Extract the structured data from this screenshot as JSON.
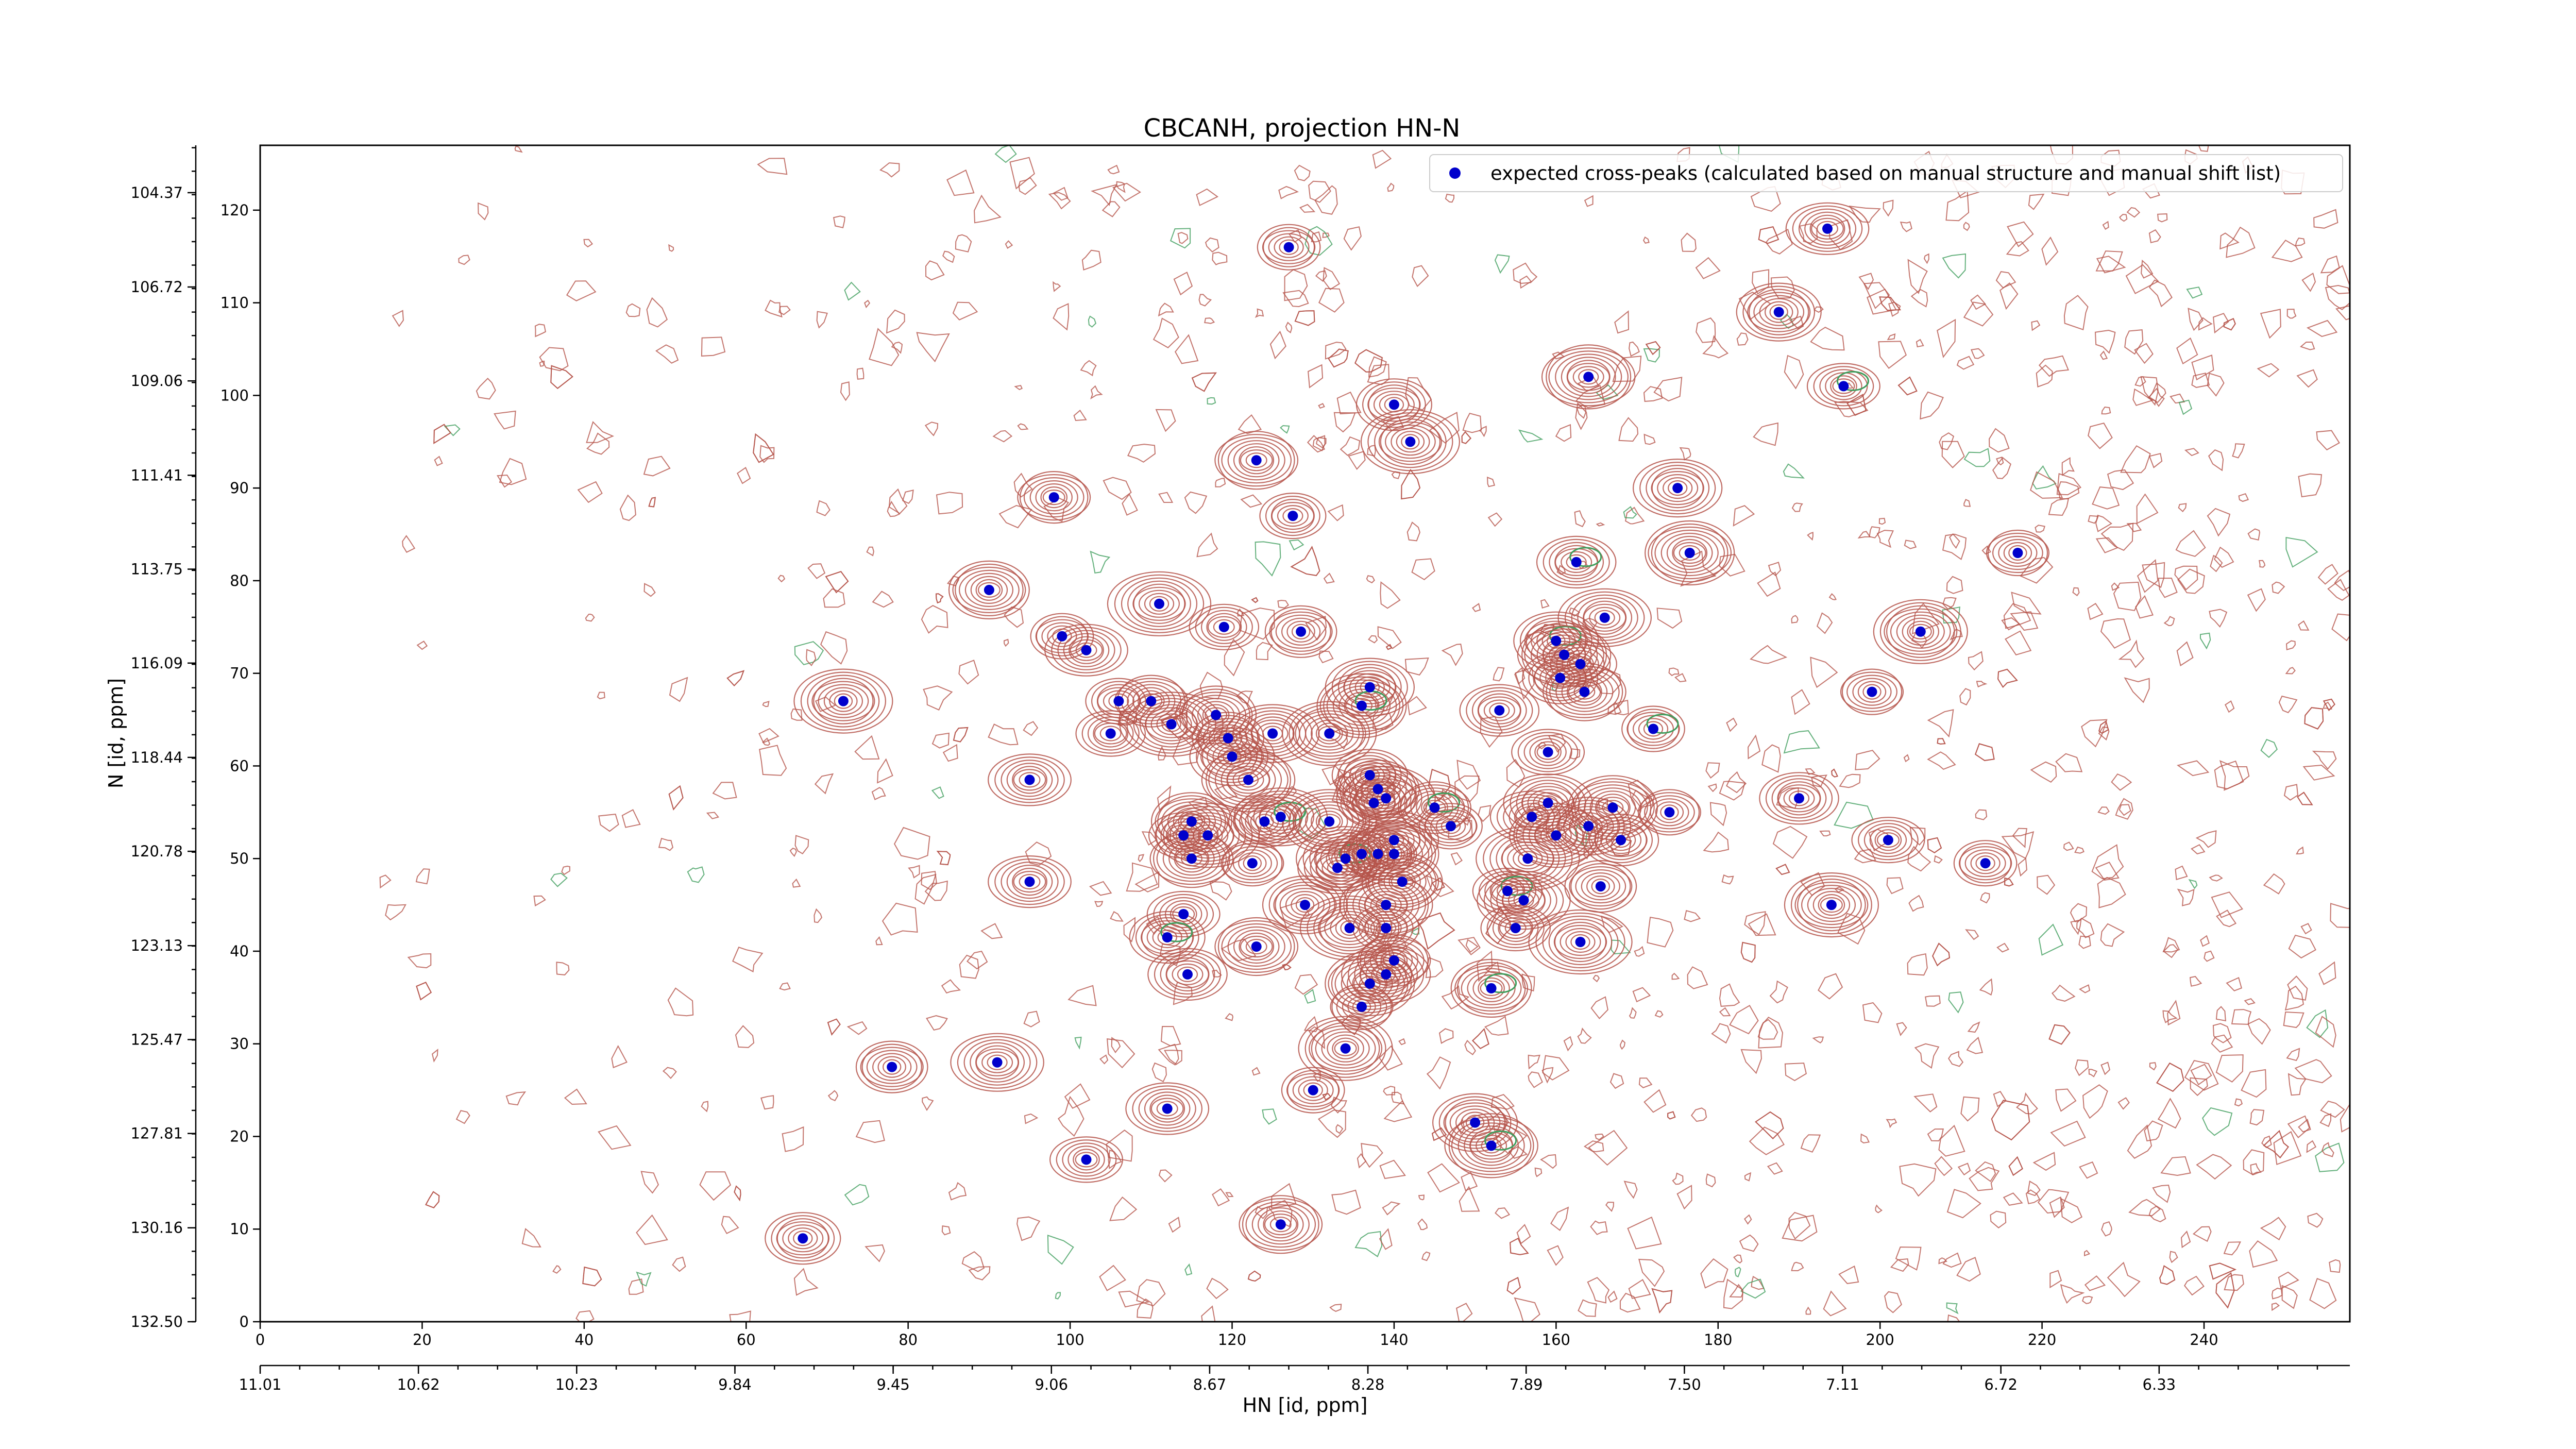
{
  "chart_data": {
    "type": "scatter",
    "title": "CBCANH, projection HN-N",
    "xlabel": "HN [id, ppm]",
    "ylabel": "N [id, ppm]",
    "colors": {
      "contour_positive": "#b5544a",
      "contour_negative": "#3f9d5c",
      "peak": "#0000cc"
    },
    "x_index_axis": {
      "range": [
        0,
        258
      ],
      "ticks": [
        "0",
        "20",
        "40",
        "60",
        "80",
        "100",
        "120",
        "140",
        "160",
        "180",
        "200",
        "220",
        "240"
      ]
    },
    "x_ppm_axis": {
      "range": [
        11.01,
        5.86
      ],
      "ticks": [
        "11.01",
        "10.62",
        "10.23",
        "9.84",
        "9.45",
        "9.06",
        "8.67",
        "8.28",
        "7.89",
        "7.50",
        "7.11",
        "6.72",
        "6.33"
      ]
    },
    "y_index_axis": {
      "range": [
        0,
        127
      ],
      "ticks": [
        "0",
        "10",
        "20",
        "30",
        "40",
        "50",
        "60",
        "70",
        "80",
        "90",
        "100",
        "110",
        "120"
      ]
    },
    "y_ppm_axis": {
      "range": [
        132.5,
        103.19
      ],
      "ticks": [
        "132.50",
        "130.16",
        "127.81",
        "125.47",
        "123.13",
        "120.78",
        "118.44",
        "116.09",
        "113.75",
        "111.41",
        "109.06",
        "106.72",
        "104.37"
      ]
    },
    "legend": {
      "label": "expected cross-peaks (calculated based on manual structure and manual shift list)",
      "placement": "top-right"
    },
    "series": [
      {
        "name": "expected cross-peaks (calculated based on manual structure and manual shift list)",
        "points": [
          [
            127,
            116
          ],
          [
            193.5,
            118
          ],
          [
            187.5,
            109
          ],
          [
            164,
            102
          ],
          [
            195.5,
            101
          ],
          [
            140,
            99
          ],
          [
            123,
            93
          ],
          [
            142,
            95
          ],
          [
            127.5,
            87
          ],
          [
            98,
            89
          ],
          [
            175,
            90
          ],
          [
            176.5,
            83
          ],
          [
            217,
            83
          ],
          [
            162.5,
            82
          ],
          [
            90,
            79
          ],
          [
            111,
            77.5
          ],
          [
            119,
            75
          ],
          [
            128.5,
            74.5
          ],
          [
            166,
            76
          ],
          [
            205,
            74.5
          ],
          [
            99,
            74
          ],
          [
            102,
            72.5
          ],
          [
            160,
            73.5
          ],
          [
            161,
            72
          ],
          [
            163,
            71
          ],
          [
            160.5,
            69.5
          ],
          [
            163.5,
            68
          ],
          [
            72,
            67
          ],
          [
            106,
            67
          ],
          [
            110,
            67
          ],
          [
            137,
            68.5
          ],
          [
            136,
            66.5
          ],
          [
            199,
            68
          ],
          [
            153,
            66
          ],
          [
            118,
            65.5
          ],
          [
            112.5,
            64.5
          ],
          [
            105,
            63.5
          ],
          [
            119.5,
            63
          ],
          [
            125,
            63.5
          ],
          [
            132,
            63.5
          ],
          [
            172,
            64
          ],
          [
            95,
            58.5
          ],
          [
            120,
            61
          ],
          [
            122,
            58.5
          ],
          [
            159,
            61.5
          ],
          [
            137,
            59
          ],
          [
            138,
            57.5
          ],
          [
            139,
            56.5
          ],
          [
            137.5,
            56
          ],
          [
            145,
            55.5
          ],
          [
            159,
            56
          ],
          [
            167,
            55.5
          ],
          [
            174,
            55
          ],
          [
            190,
            56.5
          ],
          [
            115,
            54
          ],
          [
            117,
            52.5
          ],
          [
            114,
            52.5
          ],
          [
            124,
            54
          ],
          [
            126,
            54.5
          ],
          [
            132,
            54
          ],
          [
            147,
            53.5
          ],
          [
            157,
            54.5
          ],
          [
            164,
            53.5
          ],
          [
            160,
            52.5
          ],
          [
            201,
            52
          ],
          [
            168,
            52
          ],
          [
            115,
            50
          ],
          [
            134,
            50
          ],
          [
            136,
            50.5
          ],
          [
            138,
            50.5
          ],
          [
            140,
            52
          ],
          [
            140,
            50.5
          ],
          [
            122.5,
            49.5
          ],
          [
            133,
            49
          ],
          [
            141,
            47.5
          ],
          [
            156.5,
            50
          ],
          [
            154,
            46.5
          ],
          [
            165.5,
            47
          ],
          [
            156,
            45.5
          ],
          [
            194,
            45
          ],
          [
            213,
            49.5
          ],
          [
            95,
            47.5
          ],
          [
            129,
            45
          ],
          [
            139,
            45
          ],
          [
            114,
            44
          ],
          [
            112,
            41.5
          ],
          [
            123,
            40.5
          ],
          [
            134.5,
            42.5
          ],
          [
            139,
            42.5
          ],
          [
            140,
            39
          ],
          [
            139,
            37.5
          ],
          [
            137,
            36.5
          ],
          [
            136,
            34
          ],
          [
            114.5,
            37.5
          ],
          [
            152,
            36
          ],
          [
            163,
            41
          ],
          [
            155,
            42.5
          ],
          [
            78,
            27.5
          ],
          [
            91,
            28
          ],
          [
            134,
            29.5
          ],
          [
            130,
            25
          ],
          [
            112,
            23
          ],
          [
            150,
            21.5
          ],
          [
            152,
            19
          ],
          [
            102,
            17.5
          ],
          [
            67,
            9
          ],
          [
            126,
            10.5
          ]
        ]
      }
    ]
  }
}
